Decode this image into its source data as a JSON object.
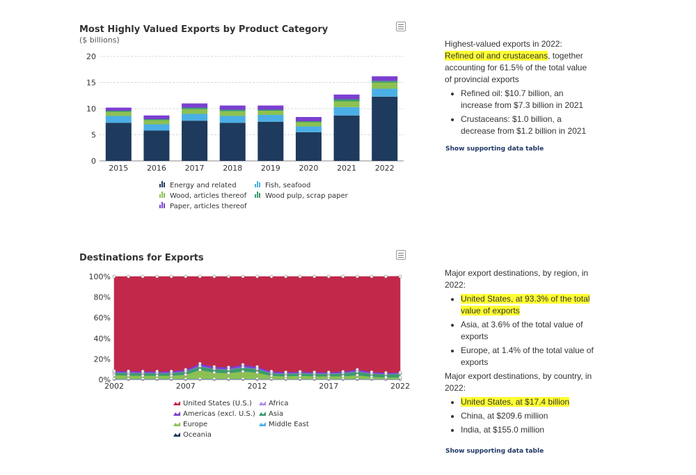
{
  "chart1": {
    "chart_data": {
      "type": "bar",
      "stacked": true,
      "title": "Most Highly Valued Exports by Product Category",
      "subtitle": "($ billions)",
      "categories": [
        "2015",
        "2016",
        "2017",
        "2018",
        "2019",
        "2020",
        "2021",
        "2022"
      ],
      "ylim": [
        0,
        20
      ],
      "yticks": [
        0,
        5,
        10,
        15,
        20
      ],
      "grid": true,
      "legend_position": "bottom",
      "series": [
        {
          "name": "Energy and related",
          "color": "#1e3a5c",
          "values": [
            7.3,
            5.8,
            7.7,
            7.3,
            7.5,
            5.5,
            8.7,
            12.3
          ]
        },
        {
          "name": "Fish, seafood",
          "color": "#4bafe6",
          "values": [
            1.3,
            1.2,
            1.3,
            1.3,
            1.3,
            1.1,
            1.6,
            1.5
          ]
        },
        {
          "name": "Wood, articles thereof",
          "color": "#8cc152",
          "values": [
            0.8,
            0.8,
            0.9,
            0.9,
            0.8,
            0.8,
            1.1,
            1.2
          ]
        },
        {
          "name": "Wood pulp, scrap paper",
          "color": "#3c9a6e",
          "values": [
            0.2,
            0.2,
            0.3,
            0.3,
            0.2,
            0.2,
            0.4,
            0.3
          ]
        },
        {
          "name": "Paper, articles thereof",
          "color": "#7b3fd1",
          "values": [
            0.6,
            0.7,
            0.8,
            0.8,
            0.8,
            0.8,
            0.9,
            0.9
          ]
        }
      ]
    }
  },
  "chart2": {
    "chart_data": {
      "type": "area",
      "stacked": true,
      "percent": true,
      "title": "Destinations for Exports",
      "x": [
        2002,
        2003,
        2004,
        2005,
        2006,
        2007,
        2008,
        2009,
        2010,
        2011,
        2012,
        2013,
        2014,
        2015,
        2016,
        2017,
        2018,
        2019,
        2020,
        2021,
        2022
      ],
      "xticks": [
        2002,
        2007,
        2012,
        2017,
        2022
      ],
      "yticks": [
        "0%",
        "20%",
        "40%",
        "60%",
        "80%",
        "100%"
      ],
      "ylim": [
        0,
        100
      ],
      "grid": true,
      "legend_position": "bottom",
      "series": [
        {
          "name": "Oceania",
          "color": "#1e3a5c",
          "values": [
            0.3,
            0.3,
            0.3,
            0.3,
            0.3,
            0.3,
            0.3,
            0.3,
            0.3,
            0.3,
            0.3,
            0.3,
            0.3,
            0.3,
            0.3,
            0.3,
            0.3,
            0.3,
            0.3,
            0.3,
            0.3
          ]
        },
        {
          "name": "Middle East",
          "color": "#4bafe6",
          "values": [
            0.5,
            0.5,
            0.5,
            0.5,
            0.5,
            0.5,
            0.6,
            0.5,
            0.5,
            0.6,
            0.5,
            0.4,
            0.4,
            0.4,
            0.4,
            0.4,
            0.4,
            0.5,
            0.4,
            0.4,
            0.4
          ]
        },
        {
          "name": "Europe",
          "color": "#8cc152",
          "values": [
            3.5,
            3.2,
            3.0,
            3.0,
            3.0,
            4.0,
            8.5,
            6.0,
            5.5,
            7.0,
            6.0,
            3.0,
            2.5,
            3.0,
            2.5,
            2.5,
            2.5,
            3.5,
            2.0,
            1.5,
            1.4
          ]
        },
        {
          "name": "Asia",
          "color": "#3c9a6e",
          "values": [
            2.5,
            2.5,
            2.5,
            2.5,
            2.5,
            3.0,
            3.5,
            3.5,
            3.5,
            4.0,
            3.5,
            2.5,
            2.5,
            2.5,
            2.5,
            2.5,
            3.0,
            3.5,
            3.0,
            3.0,
            3.6
          ]
        },
        {
          "name": "Africa",
          "color": "#b388eb",
          "values": [
            0.3,
            0.3,
            0.3,
            0.3,
            0.3,
            0.3,
            0.4,
            0.3,
            0.3,
            0.4,
            0.3,
            0.3,
            0.3,
            0.3,
            0.3,
            0.3,
            0.3,
            0.3,
            0.3,
            0.3,
            0.3
          ]
        },
        {
          "name": "Americas (excl. U.S.)",
          "color": "#7b3fd1",
          "values": [
            1.4,
            1.4,
            1.4,
            1.4,
            1.4,
            1.6,
            2.2,
            1.9,
            1.9,
            2.2,
            1.9,
            1.5,
            1.3,
            1.3,
            1.3,
            1.3,
            1.3,
            1.6,
            1.4,
            1.2,
            1.0
          ]
        },
        {
          "name": "United States (U.S.)",
          "color": "#c2284a",
          "values": [
            91.5,
            91.8,
            92.0,
            92.0,
            92.0,
            90.3,
            84.5,
            87.5,
            88.0,
            85.5,
            87.5,
            92.0,
            92.7,
            92.2,
            92.7,
            92.7,
            92.2,
            90.3,
            92.6,
            93.3,
            93.3
          ]
        }
      ]
    }
  },
  "panel1": {
    "intro": "Highest-valued exports in 2022:",
    "highlight": "Refined oil and crustaceans",
    "rest": ", together accounting for 61.5% of the total value of provincial exports",
    "bullets": [
      "Refined oil: $10.7 billion, an increase from $7.3 billion in 2021",
      "Crustaceans: $1.0 billion, a decrease from $1.2 billion in 2021"
    ],
    "link": "Show supporting data table"
  },
  "panel2": {
    "region_intro": "Major export destinations, by region, in 2022:",
    "region_bullets": [
      "United States, at 93.3% of the total value of exports",
      "Asia, at 3.6% of the total value of exports",
      "Europe, at 1.4% of the total value of exports"
    ],
    "country_intro": "Major export destinations, by country, in 2022:",
    "country_bullets": [
      "United States, at $17.4 billion",
      "China, at $209.6 million",
      "India, at $155.0 million"
    ],
    "link": "Show supporting data table"
  }
}
